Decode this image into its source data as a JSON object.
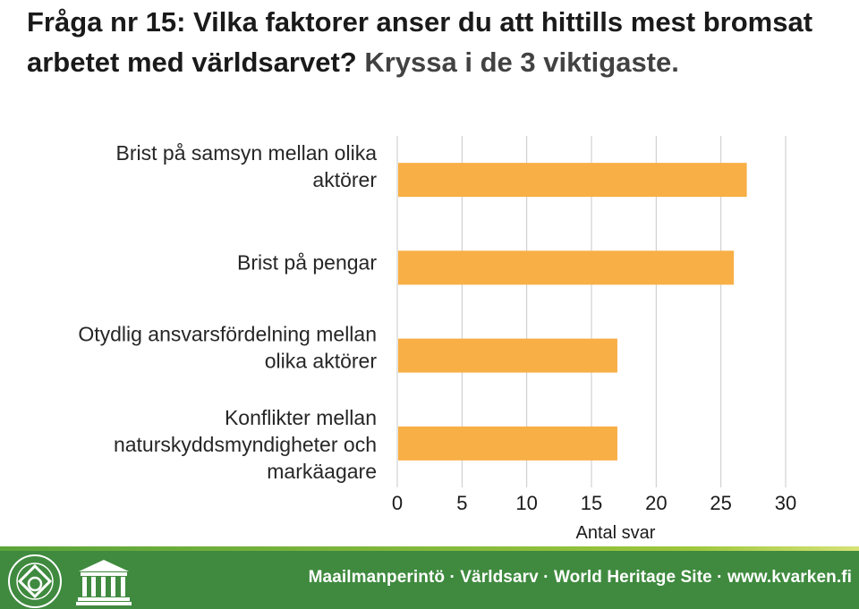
{
  "title": {
    "main": "Fråga nr 15: Vilka faktorer anser du att hittills mest bromsat arbetet med världsarvet?",
    "instruction": "Kryssa i de 3 viktigaste."
  },
  "chart_data": {
    "type": "bar",
    "orientation": "horizontal",
    "categories": [
      [
        "Brist på samsyn mellan olika",
        "aktörer"
      ],
      [
        "Brist på pengar"
      ],
      [
        "Otydlig ansvarsfördelning mellan",
        "olika aktörer"
      ],
      [
        "Konflikter mellan",
        "naturskyddsmyndigheter och",
        "markäagare"
      ]
    ],
    "values": [
      27,
      26,
      17,
      17
    ],
    "xlim": [
      0,
      30
    ],
    "xticks": [
      "0",
      "5",
      "10",
      "15",
      "20",
      "25",
      "30"
    ],
    "xlabel": "Antal svar",
    "grid": "vertical",
    "bar_color": "#f8af45"
  },
  "footer": {
    "text": "Maailmanperintö · Världsarv · World Heritage Site · www.kvarken.fi",
    "background": "#3f8a3f",
    "logos": [
      "world-heritage-emblem",
      "unesco-temple-logo"
    ]
  }
}
